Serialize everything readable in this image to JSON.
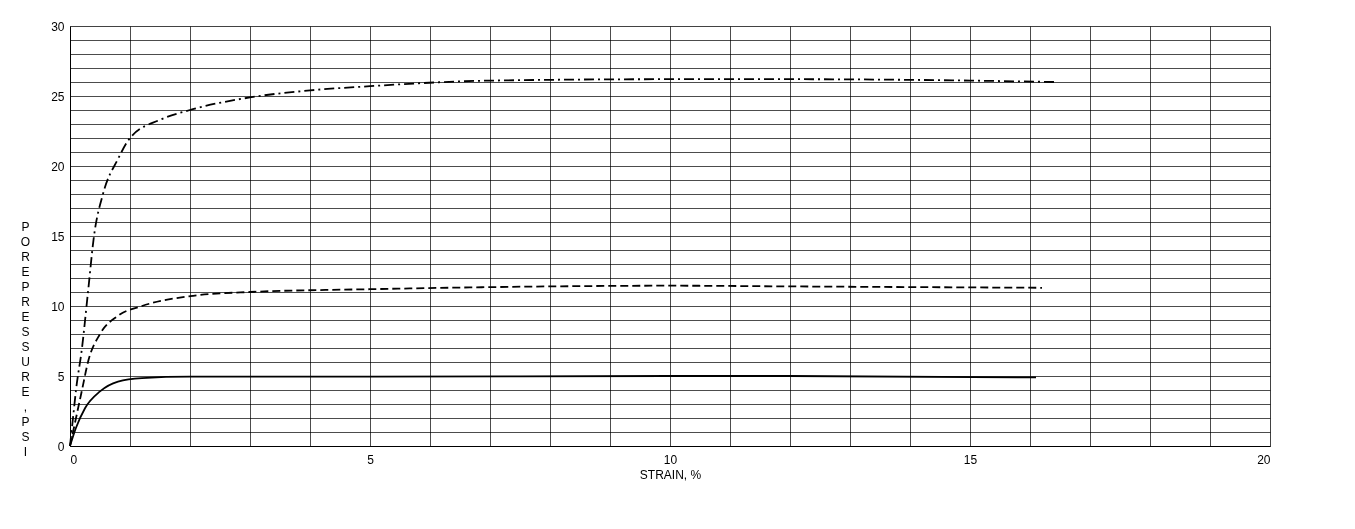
{
  "chart_data": {
    "type": "line",
    "xlabel": "STRAIN, %",
    "ylabel": "PORE PRESSURE, PSI",
    "xlim": [
      0,
      20
    ],
    "ylim": [
      0,
      30
    ],
    "xticks": [
      0,
      {
        "value": 1,
        "label": null
      },
      {
        "value": 2,
        "label": null
      },
      {
        "value": 3,
        "label": null
      },
      {
        "value": 4,
        "label": null
      },
      5,
      {
        "value": 6,
        "label": null
      },
      {
        "value": 7,
        "label": null
      },
      {
        "value": 8,
        "label": null
      },
      {
        "value": 9,
        "label": null
      },
      10,
      {
        "value": 11,
        "label": null
      },
      {
        "value": 12,
        "label": null
      },
      {
        "value": 13,
        "label": null
      },
      {
        "value": 14,
        "label": null
      },
      15,
      {
        "value": 16,
        "label": null
      },
      {
        "value": 17,
        "label": null
      },
      {
        "value": 18,
        "label": null
      },
      {
        "value": 19,
        "label": null
      },
      20
    ],
    "yticks": [
      0,
      {
        "value": 1,
        "label": null
      },
      {
        "value": 2,
        "label": null
      },
      {
        "value": 3,
        "label": null
      },
      {
        "value": 4,
        "label": null
      },
      5,
      {
        "value": 6,
        "label": null
      },
      {
        "value": 7,
        "label": null
      },
      {
        "value": 8,
        "label": null
      },
      {
        "value": 9,
        "label": null
      },
      10,
      {
        "value": 11,
        "label": null
      },
      {
        "value": 12,
        "label": null
      },
      {
        "value": 13,
        "label": null
      },
      {
        "value": 14,
        "label": null
      },
      15,
      {
        "value": 16,
        "label": null
      },
      {
        "value": 17,
        "label": null
      },
      {
        "value": 18,
        "label": null
      },
      {
        "value": 19,
        "label": null
      },
      20,
      {
        "value": 21,
        "label": null
      },
      {
        "value": 22,
        "label": null
      },
      {
        "value": 23,
        "label": null
      },
      {
        "value": 24,
        "label": null
      },
      25,
      {
        "value": 26,
        "label": null
      },
      {
        "value": 27,
        "label": null
      },
      {
        "value": 28,
        "label": null
      },
      {
        "value": 29,
        "label": null
      },
      30
    ],
    "grid": true,
    "series": [
      {
        "color": "#000000",
        "line_style": "solid",
        "x": [
          0,
          0.1,
          0.25,
          0.5,
          0.8,
          1.2,
          2,
          5,
          10,
          12,
          16.1
        ],
        "values": [
          0,
          1.3,
          2.7,
          3.9,
          4.6,
          4.85,
          4.95,
          4.95,
          5.0,
          5.0,
          4.9
        ]
      },
      {
        "color": "#000000",
        "line_style": "dashed",
        "x": [
          0,
          0.1,
          0.2,
          0.3,
          0.5,
          0.8,
          1.2,
          2,
          3,
          5,
          8,
          10,
          12,
          16.2
        ],
        "values": [
          0,
          2,
          4,
          6,
          8,
          9.3,
          10,
          10.7,
          11,
          11.2,
          11.4,
          11.45,
          11.4,
          11.3
        ]
      },
      {
        "color": "#000000",
        "line_style": "dashdot",
        "x": [
          0,
          0.05,
          0.1,
          0.2,
          0.3,
          0.4,
          0.55,
          0.8,
          1,
          1.5,
          2,
          3,
          4,
          5,
          7,
          10,
          12,
          15,
          16.4
        ],
        "values": [
          0,
          2,
          4,
          7,
          11,
          15,
          18,
          20.5,
          22,
          23.3,
          24,
          24.9,
          25.4,
          25.7,
          26.1,
          26.2,
          26.2,
          26.1,
          26.0
        ]
      }
    ]
  }
}
